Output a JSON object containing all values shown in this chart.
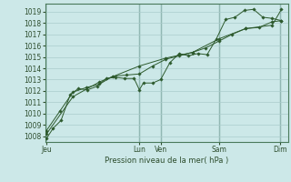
{
  "bg_color": "#cce8e8",
  "grid_color": "#aacccc",
  "line_color": "#2d5a2d",
  "vline_color": "#5a8a7a",
  "title": "Pression niveau de la mer( hPa )",
  "ylim": [
    1007.5,
    1019.7
  ],
  "yticks": [
    1008,
    1009,
    1010,
    1011,
    1012,
    1013,
    1014,
    1015,
    1016,
    1017,
    1018,
    1019
  ],
  "xtick_labels": [
    "Jeu",
    "Lun",
    "Ven",
    "Sam",
    "Dim"
  ],
  "xtick_positions": [
    0.0,
    3.5,
    4.3,
    6.5,
    8.8
  ],
  "xlim": [
    -0.05,
    9.1
  ],
  "vline_positions": [
    3.5,
    4.3,
    6.5,
    8.8
  ],
  "series1_x": [
    0.0,
    0.25,
    0.55,
    0.9,
    1.2,
    1.55,
    1.9,
    2.25,
    2.6,
    2.95,
    3.3,
    3.5,
    3.65,
    4.0,
    4.3,
    4.65,
    5.0,
    5.35,
    5.7,
    6.05,
    6.4,
    6.75,
    7.1,
    7.45,
    7.8,
    8.15,
    8.5,
    8.85
  ],
  "series1_y": [
    1007.8,
    1008.7,
    1009.4,
    1011.7,
    1012.2,
    1012.1,
    1012.4,
    1013.1,
    1013.2,
    1013.1,
    1013.1,
    1012.1,
    1012.7,
    1012.7,
    1013.0,
    1014.5,
    1015.3,
    1015.1,
    1015.3,
    1015.2,
    1016.6,
    1018.3,
    1018.5,
    1019.1,
    1019.2,
    1018.5,
    1018.4,
    1018.2
  ],
  "series2_x": [
    0.0,
    0.5,
    1.0,
    1.5,
    2.0,
    2.5,
    3.0,
    3.5,
    4.0,
    4.5,
    5.0,
    5.5,
    6.0,
    6.5,
    7.0,
    7.5,
    8.0,
    8.5,
    8.85
  ],
  "series2_y": [
    1008.5,
    1010.2,
    1011.9,
    1012.3,
    1012.6,
    1013.3,
    1013.4,
    1013.5,
    1014.2,
    1014.8,
    1015.1,
    1015.4,
    1015.8,
    1016.4,
    1017.0,
    1017.5,
    1017.6,
    1018.1,
    1018.2
  ],
  "series3_x": [
    0.0,
    1.0,
    2.0,
    3.5,
    4.5,
    5.5,
    6.5,
    7.5,
    8.5,
    8.85
  ],
  "series3_y": [
    1008.2,
    1011.5,
    1012.8,
    1014.2,
    1014.9,
    1015.4,
    1016.6,
    1017.5,
    1017.8,
    1019.2
  ],
  "title_fontsize": 6.0,
  "tick_fontsize": 5.5
}
